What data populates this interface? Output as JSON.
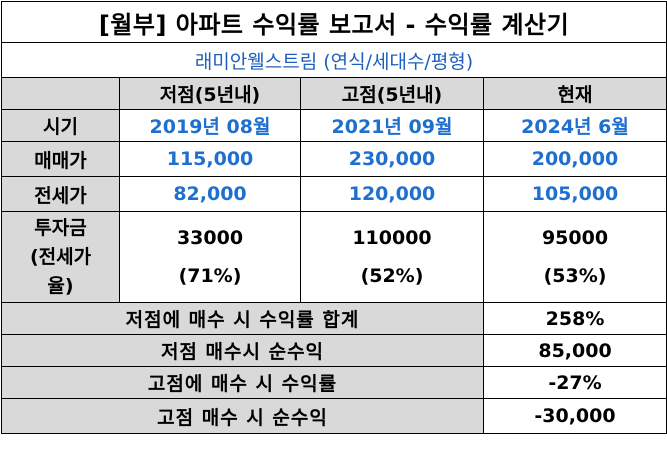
{
  "title": "[월부] 아파트 수익률 보고서 - 수익률 계산기",
  "subtitle": "래미안웰스트림 (연식/세대수/평형)",
  "columns": [
    "저점(5년내)",
    "고점(5년내)",
    "현재"
  ],
  "rows": {
    "period": {
      "label": "시기",
      "values": [
        "2019년 08월",
        "2021년 09월",
        "2024년 6월"
      ]
    },
    "sale_price": {
      "label": "매매가",
      "values": [
        "115,000",
        "230,000",
        "200,000"
      ]
    },
    "jeonse_price": {
      "label": "전세가",
      "values": [
        "82,000",
        "120,000",
        "105,000"
      ]
    },
    "investment": {
      "label_lines": [
        "투자금",
        "(전세가",
        "율)"
      ],
      "values": [
        {
          "amount": "33000",
          "ratio": "(71%)"
        },
        {
          "amount": "110000",
          "ratio": "(52%)"
        },
        {
          "amount": "95000",
          "ratio": "(53%)"
        }
      ]
    }
  },
  "summary": [
    {
      "label": "저점에 매수 시 수익률 합계",
      "value": "258%"
    },
    {
      "label": "저점 매수시 순수익",
      "value": "85,000"
    },
    {
      "label": "고점에 매수 시 수익률",
      "value": "-27%"
    },
    {
      "label": "고점 매수 시 순수익",
      "value": "-30,000"
    }
  ]
}
